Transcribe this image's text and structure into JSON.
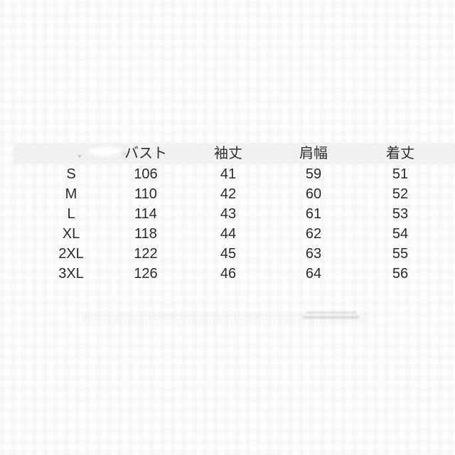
{
  "size_chart": {
    "columns": [
      "",
      "バスト",
      "袖丈",
      "肩幅",
      "着丈"
    ],
    "rows": [
      {
        "size": "S",
        "bust": "106",
        "sleeve": "41",
        "shoulder": "59",
        "length": "51"
      },
      {
        "size": "M",
        "bust": "110",
        "sleeve": "42",
        "shoulder": "60",
        "length": "52"
      },
      {
        "size": "L",
        "bust": "114",
        "sleeve": "43",
        "shoulder": "61",
        "length": "53"
      },
      {
        "size": "XL",
        "bust": "118",
        "sleeve": "44",
        "shoulder": "62",
        "length": "54"
      },
      {
        "size": "2XL",
        "bust": "122",
        "sleeve": "45",
        "shoulder": "63",
        "length": "55"
      },
      {
        "size": "3XL",
        "bust": "126",
        "sleeve": "46",
        "shoulder": "64",
        "length": "56"
      }
    ],
    "colors": {
      "header_background": "#f1f1f1",
      "text": "#2a2a2a",
      "page_background": "#ffffff"
    }
  }
}
